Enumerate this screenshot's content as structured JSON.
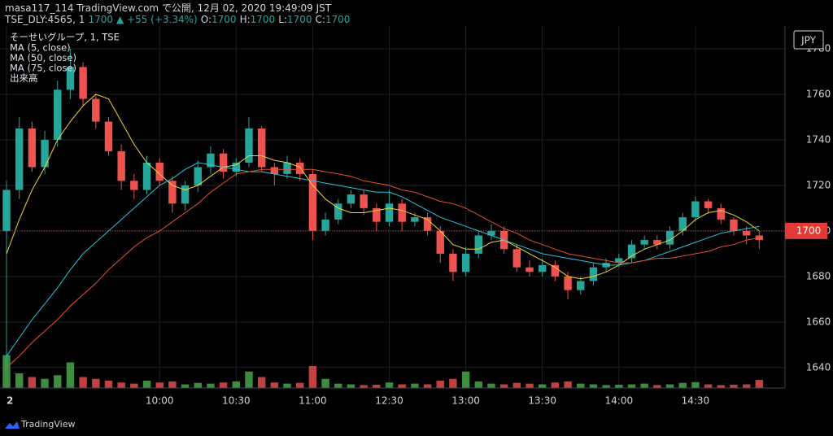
{
  "header": {
    "published": "masa117_114 TradingView.com で公開, 12月 02, 2020 19:49:09 JST",
    "symbol": "TSE_DLY:4565, 1",
    "last": "1700",
    "change": "▲ +55 (+3.34%)",
    "ohlc": [
      {
        "label": "O:",
        "value": "1700"
      },
      {
        "label": "H:",
        "value": "1700"
      },
      {
        "label": "L:",
        "value": "1700"
      },
      {
        "label": "C:",
        "value": "1700"
      }
    ]
  },
  "chart_data": {
    "type": "candlestick",
    "legend_title": "そーせいグループ, 1, TSE",
    "volume_name": "出来高",
    "currency": "JPY",
    "up_color": "#26a69a",
    "down_color": "#ef5350",
    "volume_up_color": "#4caf50",
    "volume_down_color": "#ef5350",
    "grid": true,
    "x": [
      0,
      5,
      10,
      15,
      20,
      25,
      30,
      35,
      40,
      45,
      50,
      55,
      60,
      65,
      70,
      75,
      80,
      85,
      90,
      95,
      100,
      105,
      110,
      115,
      120,
      125,
      130,
      135,
      140,
      145,
      150,
      155,
      160,
      165,
      170,
      175,
      180,
      185,
      190,
      195,
      200,
      205,
      210,
      215,
      220,
      225,
      230,
      235,
      240,
      245,
      250,
      255,
      260,
      265,
      270,
      275,
      280,
      285,
      290,
      295
    ],
    "open": [
      1700,
      1718,
      1745,
      1728,
      1740,
      1762,
      1772,
      1758,
      1748,
      1735,
      1722,
      1718,
      1730,
      1722,
      1712,
      1720,
      1728,
      1734,
      1726,
      1730,
      1745,
      1728,
      1725,
      1730,
      1725,
      1700,
      1705,
      1712,
      1716,
      1710,
      1704,
      1712,
      1704,
      1706,
      1700,
      1690,
      1682,
      1690,
      1698,
      1700,
      1692,
      1684,
      1682,
      1685,
      1680,
      1674,
      1678,
      1684,
      1686,
      1688,
      1694,
      1696,
      1694,
      1700,
      1706,
      1713,
      1710,
      1705,
      1700,
      1698
    ],
    "high": [
      1722,
      1750,
      1748,
      1744,
      1766,
      1780,
      1774,
      1760,
      1750,
      1738,
      1725,
      1733,
      1732,
      1724,
      1722,
      1731,
      1737,
      1736,
      1732,
      1750,
      1746,
      1730,
      1733,
      1732,
      1727,
      1708,
      1714,
      1718,
      1718,
      1712,
      1718,
      1714,
      1708,
      1708,
      1702,
      1692,
      1693,
      1700,
      1703,
      1702,
      1694,
      1687,
      1688,
      1687,
      1682,
      1680,
      1686,
      1688,
      1690,
      1696,
      1698,
      1698,
      1702,
      1708,
      1715,
      1714,
      1712,
      1706,
      1702,
      1700
    ],
    "low": [
      1640,
      1714,
      1726,
      1725,
      1737,
      1758,
      1755,
      1745,
      1733,
      1718,
      1714,
      1716,
      1720,
      1708,
      1709,
      1717,
      1725,
      1723,
      1724,
      1728,
      1726,
      1720,
      1723,
      1722,
      1696,
      1698,
      1703,
      1710,
      1707,
      1700,
      1702,
      1700,
      1702,
      1698,
      1686,
      1678,
      1680,
      1688,
      1696,
      1690,
      1682,
      1680,
      1680,
      1678,
      1670,
      1672,
      1676,
      1682,
      1684,
      1686,
      1692,
      1692,
      1692,
      1698,
      1704,
      1708,
      1703,
      1698,
      1694,
      1692
    ],
    "close": [
      1718,
      1745,
      1728,
      1740,
      1762,
      1772,
      1758,
      1748,
      1735,
      1722,
      1718,
      1730,
      1722,
      1712,
      1720,
      1728,
      1734,
      1726,
      1730,
      1745,
      1728,
      1725,
      1730,
      1725,
      1700,
      1705,
      1712,
      1716,
      1710,
      1704,
      1712,
      1704,
      1706,
      1700,
      1690,
      1682,
      1690,
      1698,
      1700,
      1692,
      1684,
      1682,
      1685,
      1680,
      1674,
      1678,
      1684,
      1686,
      1688,
      1694,
      1696,
      1694,
      1700,
      1706,
      1713,
      1710,
      1705,
      1700,
      1698,
      1696
    ],
    "volume": [
      90,
      40,
      30,
      25,
      35,
      70,
      30,
      25,
      20,
      15,
      12,
      20,
      15,
      18,
      10,
      14,
      12,
      15,
      18,
      45,
      30,
      15,
      12,
      14,
      60,
      25,
      12,
      10,
      8,
      9,
      15,
      10,
      12,
      10,
      20,
      25,
      45,
      18,
      12,
      10,
      14,
      12,
      10,
      15,
      18,
      12,
      10,
      8,
      9,
      10,
      12,
      8,
      10,
      14,
      16,
      10,
      8,
      9,
      10,
      22
    ],
    "series": [
      {
        "name": "MA (5, close)",
        "color": "#f5d33b",
        "values": [
          1690,
          1705,
          1718,
          1728,
          1740,
          1748,
          1755,
          1760,
          1758,
          1748,
          1738,
          1730,
          1725,
          1720,
          1718,
          1720,
          1724,
          1728,
          1729,
          1733,
          1733,
          1731,
          1730,
          1728,
          1720,
          1714,
          1710,
          1708,
          1708,
          1709,
          1710,
          1709,
          1707,
          1705,
          1700,
          1694,
          1692,
          1692,
          1695,
          1696,
          1693,
          1690,
          1687,
          1684,
          1680,
          1679,
          1680,
          1682,
          1685,
          1689,
          1692,
          1694,
          1696,
          1700,
          1705,
          1708,
          1709,
          1707,
          1704,
          1700
        ]
      },
      {
        "name": "MA (50, close)",
        "color": "#26c6da",
        "values": [
          1645,
          1653,
          1661,
          1668,
          1675,
          1683,
          1690,
          1695,
          1700,
          1705,
          1710,
          1715,
          1720,
          1723,
          1727,
          1730,
          1729,
          1728,
          1727,
          1726,
          1726,
          1725,
          1724,
          1723,
          1722,
          1721,
          1720,
          1719,
          1718,
          1717,
          1717,
          1715,
          1712,
          1709,
          1706,
          1704,
          1702,
          1700,
          1698,
          1696,
          1694,
          1692,
          1690,
          1689,
          1688,
          1687,
          1686,
          1685,
          1685,
          1686,
          1687,
          1689,
          1691,
          1693,
          1695,
          1697,
          1699,
          1700,
          1701,
          1702
        ]
      },
      {
        "name": "MA (75, close)",
        "color": "#e5502e",
        "values": [
          1640,
          1645,
          1651,
          1656,
          1661,
          1667,
          1672,
          1677,
          1683,
          1688,
          1693,
          1697,
          1700,
          1704,
          1708,
          1712,
          1717,
          1721,
          1725,
          1726,
          1727,
          1727,
          1727,
          1727,
          1727,
          1726,
          1725,
          1724,
          1722,
          1721,
          1720,
          1718,
          1717,
          1715,
          1713,
          1712,
          1710,
          1707,
          1704,
          1701,
          1699,
          1696,
          1694,
          1692,
          1690,
          1689,
          1688,
          1687,
          1686,
          1686,
          1687,
          1688,
          1688,
          1689,
          1690,
          1691,
          1693,
          1694,
          1696,
          1697
        ]
      }
    ],
    "price_line": 1700,
    "price_line_color": "#e53935",
    "xlim": [
      0,
      300
    ],
    "xticks": [
      {
        "value": 0,
        "label": "2"
      },
      {
        "value": 60,
        "label": "10:00"
      },
      {
        "value": 90,
        "label": "10:30"
      },
      {
        "value": 120,
        "label": "11:00"
      },
      {
        "value": 150,
        "label": "12:30"
      },
      {
        "value": 180,
        "label": "13:00"
      },
      {
        "value": 210,
        "label": "13:30"
      },
      {
        "value": 240,
        "label": "14:00"
      },
      {
        "value": 270,
        "label": "14:30"
      }
    ],
    "ylim": [
      1631,
      1790
    ],
    "yticks": [
      1640,
      1660,
      1680,
      1700,
      1720,
      1740,
      1760,
      1780
    ]
  },
  "footer": {
    "brand": "TradingView"
  }
}
